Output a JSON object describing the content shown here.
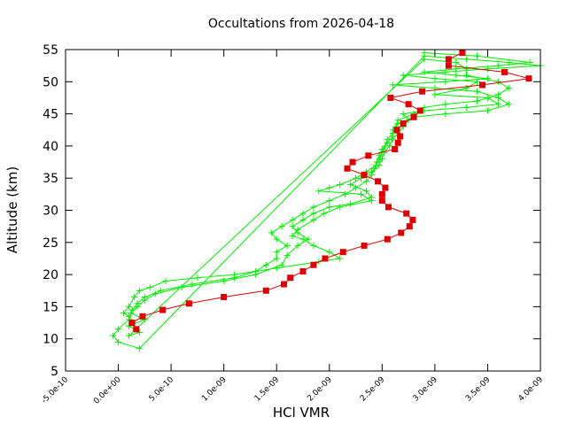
{
  "chart_data": {
    "type": "line",
    "title": "Occultations from 2026-04-18",
    "xlabel": "HCl VMR",
    "ylabel": "Altitude (km)",
    "xlim": [
      -5e-10,
      4e-09
    ],
    "ylim": [
      5,
      55
    ],
    "x_ticks": [
      -5e-10,
      0,
      5e-10,
      1e-09,
      1.5e-09,
      2e-09,
      2.5e-09,
      3e-09,
      3.5e-09,
      4e-09
    ],
    "x_tick_labels": [
      "-5.0e-10",
      "0.0e+00",
      "5.0e-10",
      "1.0e-09",
      "1.5e-09",
      "2.0e-09",
      "2.5e-09",
      "3.0e-09",
      "3.5e-09",
      "4.0e-09"
    ],
    "y_ticks": [
      5,
      10,
      15,
      20,
      25,
      30,
      35,
      40,
      45,
      50,
      55
    ],
    "y_tick_labels": [
      "5",
      "10",
      "15",
      "20",
      "25",
      "30",
      "35",
      "40",
      "45",
      "50",
      "55"
    ],
    "grid": false,
    "legend": "none",
    "series": [
      {
        "color": "#dd0000",
        "marker": "square",
        "points": [
          [
            1.7e-10,
            11.5
          ],
          [
            1.3e-10,
            12.5
          ],
          [
            2.3e-10,
            13.5
          ],
          [
            4.2e-10,
            14.5
          ],
          [
            6.7e-10,
            15.5
          ],
          [
            1e-09,
            16.5
          ],
          [
            1.4e-09,
            17.5
          ],
          [
            1.57e-09,
            18.5
          ],
          [
            1.63e-09,
            19.5
          ],
          [
            1.75e-09,
            20.5
          ],
          [
            1.85e-09,
            21.5
          ],
          [
            1.96e-09,
            22.5
          ],
          [
            2.13e-09,
            23.5
          ],
          [
            2.33e-09,
            24.5
          ],
          [
            2.55e-09,
            25.5
          ],
          [
            2.68e-09,
            26.5
          ],
          [
            2.76e-09,
            27.5
          ],
          [
            2.79e-09,
            28.5
          ],
          [
            2.73e-09,
            29.5
          ],
          [
            2.56e-09,
            30.5
          ],
          [
            2.5e-09,
            31.5
          ],
          [
            2.5e-09,
            32.5
          ],
          [
            2.53e-09,
            33.5
          ],
          [
            2.46e-09,
            34.5
          ],
          [
            2.33e-09,
            35.5
          ],
          [
            2.17e-09,
            36.5
          ],
          [
            2.22e-09,
            37.5
          ],
          [
            2.37e-09,
            38.5
          ],
          [
            2.62e-09,
            39.5
          ],
          [
            2.65e-09,
            40.5
          ],
          [
            2.67e-09,
            41.5
          ],
          [
            2.64e-09,
            42.5
          ],
          [
            2.7e-09,
            43.5
          ],
          [
            2.8e-09,
            44.5
          ],
          [
            2.86e-09,
            45.5
          ],
          [
            2.75e-09,
            46.5
          ],
          [
            2.58e-09,
            47.5
          ],
          [
            2.88e-09,
            48.5
          ],
          [
            3.45e-09,
            49.5
          ],
          [
            3.89e-09,
            50.5
          ],
          [
            3.66e-09,
            51.5
          ],
          [
            3.13e-09,
            52.5
          ],
          [
            3.13e-09,
            53.5
          ],
          [
            3.26e-09,
            54.5
          ]
        ]
      },
      {
        "color": "#00ee00",
        "marker": "plus",
        "points": [
          [
            2.9e-09,
            54.5
          ],
          [
            3.4e-09,
            54.0
          ],
          [
            3.9e-09,
            53.0
          ],
          [
            3.6e-09,
            52.5
          ],
          [
            3.2e-09,
            52.0
          ],
          [
            2.9e-09,
            51.5
          ],
          [
            3.2e-09,
            51.0
          ],
          [
            3.5e-09,
            50.5
          ],
          [
            3.1e-09,
            50.0
          ],
          [
            2.6e-09,
            49.5
          ],
          [
            3e-09,
            49.0
          ],
          [
            3.4e-09,
            48.5
          ],
          [
            3.6e-09,
            47.5
          ],
          [
            3.7e-09,
            46.5
          ],
          [
            3.5e-09,
            45.5
          ],
          [
            3.1e-09,
            45.0
          ],
          [
            2.8e-09,
            44.5
          ],
          [
            2.65e-09,
            43.5
          ],
          [
            2.6e-09,
            42.5
          ],
          [
            2.6e-09,
            41.5
          ],
          [
            2.55e-09,
            40.5
          ],
          [
            2.5e-09,
            39.5
          ],
          [
            2.47e-09,
            38.5
          ],
          [
            2.45e-09,
            37.5
          ],
          [
            2.43e-09,
            36.5
          ],
          [
            2.4e-09,
            35.5
          ],
          [
            2.35e-09,
            34.5
          ],
          [
            2.25e-09,
            33.5
          ],
          [
            2.15e-09,
            32.5
          ],
          [
            2e-09,
            31.5
          ],
          [
            1.85e-09,
            30.5
          ],
          [
            1.75e-09,
            29.5
          ],
          [
            1.65e-09,
            28.5
          ],
          [
            1.55e-09,
            27.5
          ],
          [
            1.45e-09,
            26.5
          ],
          [
            1.5e-09,
            25.5
          ],
          [
            1.6e-09,
            24.5
          ],
          [
            1.5e-09,
            23.5
          ],
          [
            1.5e-09,
            22.5
          ],
          [
            1.4e-09,
            21.5
          ],
          [
            1.3e-09,
            20.5
          ],
          [
            1.1e-09,
            19.5
          ],
          [
            7e-10,
            18.5
          ],
          [
            4e-10,
            17.5
          ],
          [
            2.5e-10,
            16.5
          ],
          [
            1.8e-10,
            15.5
          ],
          [
            1.3e-10,
            14.5
          ],
          [
            1e-10,
            13.0
          ],
          [
            0.0,
            11.5
          ],
          [
            -5e-11,
            10.5
          ],
          [
            0.0,
            9.5
          ],
          [
            2e-10,
            8.5
          ],
          [
            2.9e-09,
            54.0
          ],
          [
            3.3e-09,
            53.5
          ],
          [
            3.7e-09,
            53.0
          ],
          [
            4e-09,
            52.5
          ],
          [
            3.5e-09,
            52.0
          ],
          [
            3.1e-09,
            51.5
          ],
          [
            2.7e-09,
            51.0
          ],
          [
            3e-09,
            50.5
          ],
          [
            3.4e-09,
            50.0
          ],
          [
            3.3e-09,
            49.0
          ],
          [
            3e-09,
            48.0
          ],
          [
            3.5e-09,
            47.5
          ],
          [
            3.6e-09,
            46.5
          ],
          [
            3.3e-09,
            46.0
          ],
          [
            2.9e-09,
            45.5
          ],
          [
            2.7e-09,
            45.0
          ],
          [
            2.75e-09,
            44.0
          ],
          [
            2.7e-09,
            43.0
          ],
          [
            2.65e-09,
            42.0
          ],
          [
            2.6e-09,
            41.0
          ],
          [
            2.57e-09,
            40.0
          ],
          [
            2.52e-09,
            39.0
          ],
          [
            2.5e-09,
            38.0
          ],
          [
            2.47e-09,
            37.0
          ],
          [
            2.4e-09,
            36.0
          ],
          [
            2.3e-09,
            35.0
          ],
          [
            2.2e-09,
            34.0
          ],
          [
            2.35e-09,
            33.0
          ],
          [
            2.4e-09,
            32.0
          ],
          [
            2.2e-09,
            31.0
          ],
          [
            2e-09,
            30.5
          ],
          [
            1.85e-09,
            29.5
          ],
          [
            1.75e-09,
            28.5
          ],
          [
            1.65e-09,
            27.5
          ],
          [
            1.7e-09,
            26.5
          ],
          [
            1.8e-09,
            25.5
          ],
          [
            1.7e-09,
            24.5
          ],
          [
            1.6e-09,
            23.0
          ],
          [
            1.55e-09,
            21.5
          ],
          [
            1.3e-09,
            20.0
          ],
          [
            1e-09,
            19.0
          ],
          [
            6e-10,
            18.0
          ],
          [
            3.5e-10,
            17.0
          ],
          [
            2.5e-10,
            16.0
          ],
          [
            1.8e-10,
            15.0
          ],
          [
            1.2e-10,
            14.0
          ],
          [
            2.5e-10,
            13.0
          ],
          [
            1e-10,
            12.0
          ],
          [
            2e-10,
            11.0
          ],
          [
            1e-10,
            10.5
          ],
          [
            2.9e-09,
            53.5
          ],
          [
            3.2e-09,
            53.0
          ],
          [
            3.3e-09,
            52.0
          ],
          [
            3.3e-09,
            51.0
          ],
          [
            3.6e-09,
            50.0
          ],
          [
            3.7e-09,
            49.0
          ],
          [
            3.6e-09,
            48.0
          ],
          [
            3.4e-09,
            47.0
          ],
          [
            3.1e-09,
            46.5
          ],
          [
            2.9e-09,
            46.0
          ],
          [
            2.8e-09,
            45.0
          ],
          [
            2.65e-09,
            44.0
          ],
          [
            2.63e-09,
            43.0
          ],
          [
            2.6e-09,
            42.0
          ],
          [
            2.55e-09,
            41.0
          ],
          [
            2.53e-09,
            40.0
          ],
          [
            2.5e-09,
            39.0
          ],
          [
            2.48e-09,
            38.0
          ],
          [
            2.44e-09,
            37.0
          ],
          [
            2.35e-09,
            36.0
          ],
          [
            2.25e-09,
            35.0
          ],
          [
            2.1e-09,
            34.0
          ],
          [
            2e-09,
            33.5
          ],
          [
            1.9e-09,
            33.0
          ],
          [
            2.3e-09,
            32.5
          ],
          [
            2.4e-09,
            31.5
          ],
          [
            2.1e-09,
            30.5
          ],
          [
            1.95e-09,
            29.5
          ],
          [
            1.85e-09,
            28.5
          ],
          [
            1.7e-09,
            27.0
          ],
          [
            1.65e-09,
            26.0
          ],
          [
            1.75e-09,
            25.5
          ],
          [
            1.85e-09,
            24.5
          ],
          [
            2e-09,
            23.5
          ],
          [
            2.1e-09,
            22.5
          ],
          [
            1.9e-09,
            22.0
          ],
          [
            1.5e-09,
            21.0
          ],
          [
            1.1e-09,
            20.0
          ],
          [
            7.5e-10,
            19.5
          ],
          [
            4.5e-10,
            19.0
          ],
          [
            3e-10,
            18.0
          ],
          [
            2e-10,
            17.5
          ],
          [
            1.5e-10,
            16.5
          ],
          [
            1e-10,
            15.0
          ],
          [
            5e-11,
            14.0
          ],
          [
            1e-10,
            13.5
          ],
          [
            1.5e-10,
            12.5
          ],
          [
            1e-10,
            12.0
          ]
        ]
      }
    ]
  }
}
